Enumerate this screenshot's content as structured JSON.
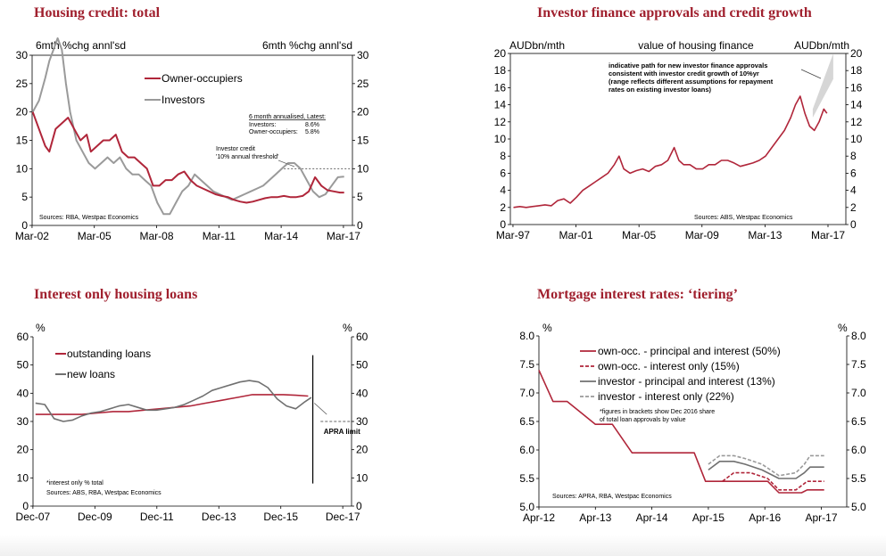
{
  "colors": {
    "title": "#a0202e",
    "red": "#b0263a",
    "grey": "#9a9a9a",
    "darkgrey": "#707070",
    "band": "#d6d6d6"
  },
  "charts": [
    {
      "id": "c1",
      "title": "Housing credit: total",
      "left_unit": "6mth %chg annl'sd",
      "right_unit": "6mth %chg annl'sd",
      "source": "Sources: RBA, Westpac Economics",
      "note": "6 month annualised, Latest:",
      "note_rows": [
        [
          "Investors:",
          "8.6%"
        ],
        [
          "Owner-occupiers:",
          "5.8%"
        ]
      ],
      "annotation": [
        "Investor credit",
        "'10% annual threshold'"
      ]
    },
    {
      "id": "c2",
      "title": "Investor finance approvals and credit growth",
      "left_unit": "AUDbn/mth",
      "center_unit": "value of housing finance",
      "right_unit": "AUDbn/mth",
      "source": "Sources: ABS, Westpac Economics",
      "annotation": [
        "indicative path for new investor finance approvals",
        "consistent with investor credit growth of 10%yr",
        "(range reflects different assumptions for repayment",
        "rates on existing investor loans)"
      ]
    },
    {
      "id": "c3",
      "title": "Interest only housing loans",
      "left_unit": "%",
      "right_unit": "%",
      "source": "Sources: ABS, RBA, Westpac Economics",
      "footnote": "*interest only % total",
      "annotation": "APRA limit"
    },
    {
      "id": "c4",
      "title": "Mortgage interest rates: ‘tiering’",
      "left_unit": "%",
      "right_unit": "%",
      "source": "Sources: APRA, RBA, Westpac Economics",
      "footnote": [
        "*figures in brackets show Dec 2016 share",
        "of total loan approvals by value"
      ]
    }
  ],
  "chart_data": [
    {
      "type": "line",
      "title": "Housing credit: total",
      "x_ticks": [
        "Mar-02",
        "Mar-05",
        "Mar-08",
        "Mar-11",
        "Mar-14",
        "Mar-17"
      ],
      "ylim": [
        0,
        30
      ],
      "y_ticks": [
        0,
        5,
        10,
        15,
        20,
        25,
        30
      ],
      "threshold": 10,
      "series": [
        {
          "name": "Owner-occupiers",
          "x": [
            2002.2,
            2002.5,
            2002.8,
            2003.0,
            2003.3,
            2003.6,
            2003.9,
            2004.2,
            2004.5,
            2004.8,
            2005.0,
            2005.3,
            2005.6,
            2005.9,
            2006.2,
            2006.5,
            2006.8,
            2007.1,
            2007.4,
            2007.7,
            2008.0,
            2008.3,
            2008.6,
            2008.9,
            2009.2,
            2009.5,
            2009.8,
            2010.1,
            2010.4,
            2010.7,
            2011.0,
            2011.3,
            2011.6,
            2011.9,
            2012.2,
            2012.5,
            2012.8,
            2013.1,
            2013.4,
            2013.7,
            2014.0,
            2014.3,
            2014.6,
            2014.9,
            2015.2,
            2015.5,
            2015.8,
            2016.1,
            2016.4,
            2016.7,
            2017.0,
            2017.2
          ],
          "y": [
            20,
            17,
            14,
            13,
            17,
            18,
            19,
            17,
            15,
            16,
            13,
            14,
            15,
            15,
            16,
            13,
            12,
            12,
            11,
            10,
            7,
            7,
            8,
            8,
            9,
            9.5,
            8,
            7,
            6.5,
            6,
            5.5,
            5.2,
            5,
            4.5,
            4.2,
            4,
            4.2,
            4.5,
            4.8,
            5,
            5,
            5.2,
            5,
            5,
            5.2,
            6,
            8.5,
            7,
            6.2,
            6,
            5.8,
            5.8
          ]
        },
        {
          "name": "Investors",
          "x": [
            2002.2,
            2002.5,
            2002.8,
            2003.0,
            2003.2,
            2003.4,
            2003.6,
            2003.8,
            2004.0,
            2004.3,
            2004.6,
            2004.9,
            2005.2,
            2005.5,
            2005.8,
            2006.1,
            2006.4,
            2006.7,
            2007.0,
            2007.3,
            2007.6,
            2007.9,
            2008.2,
            2008.5,
            2008.8,
            2009.1,
            2009.4,
            2009.7,
            2010.0,
            2010.3,
            2010.6,
            2010.9,
            2011.2,
            2011.5,
            2011.8,
            2012.1,
            2012.4,
            2012.7,
            2013.0,
            2013.3,
            2013.6,
            2013.9,
            2014.2,
            2014.5,
            2014.8,
            2015.1,
            2015.4,
            2015.7,
            2016.0,
            2016.3,
            2016.6,
            2016.9,
            2017.2
          ],
          "y": [
            20,
            22,
            26,
            29,
            31,
            33,
            31,
            25,
            20,
            15,
            13,
            11,
            10,
            11,
            12,
            11,
            12,
            10,
            9,
            9,
            8,
            7,
            4,
            2,
            2,
            4,
            6,
            7,
            9,
            8,
            7,
            6,
            5.5,
            5,
            4.5,
            5,
            5.5,
            6,
            6.5,
            7,
            8,
            9,
            10,
            11,
            11,
            10,
            8,
            6,
            5,
            5.5,
            7,
            8.5,
            8.6
          ]
        }
      ]
    },
    {
      "type": "line",
      "title": "Investor finance approvals and credit growth",
      "x_ticks": [
        "Mar-97",
        "Mar-01",
        "Mar-05",
        "Mar-09",
        "Mar-13",
        "Mar-17"
      ],
      "ylim": [
        0,
        20
      ],
      "y_ticks": [
        0,
        2,
        4,
        6,
        8,
        10,
        12,
        14,
        16,
        18,
        20
      ],
      "series": [
        {
          "name": "Investor finance approvals",
          "x": [
            1997.2,
            1997.6,
            1998.0,
            1998.4,
            1998.8,
            1999.2,
            1999.6,
            2000.0,
            2000.4,
            2000.8,
            2001.2,
            2001.6,
            2002.0,
            2002.4,
            2002.8,
            2003.2,
            2003.6,
            2003.9,
            2004.2,
            2004.6,
            2005.0,
            2005.4,
            2005.8,
            2006.2,
            2006.6,
            2007.0,
            2007.4,
            2007.7,
            2008.0,
            2008.4,
            2008.8,
            2009.2,
            2009.6,
            2010.0,
            2010.4,
            2010.8,
            2011.2,
            2011.6,
            2012.0,
            2012.4,
            2012.8,
            2013.2,
            2013.6,
            2014.0,
            2014.4,
            2014.8,
            2015.1,
            2015.4,
            2015.7,
            2016.0,
            2016.3,
            2016.6,
            2016.9,
            2017.1
          ],
          "y": [
            2,
            2.1,
            2,
            2.1,
            2.2,
            2.3,
            2.2,
            2.8,
            3,
            2.5,
            3.2,
            4,
            4.5,
            5,
            5.5,
            6,
            7,
            8,
            6.5,
            6,
            6.3,
            6.5,
            6.2,
            6.8,
            7,
            7.5,
            9,
            7.5,
            7,
            7,
            6.5,
            6.5,
            7,
            7,
            7.5,
            7.5,
            7.2,
            6.8,
            7,
            7.2,
            7.5,
            8,
            9,
            10,
            11,
            12.5,
            14,
            15,
            13,
            11.5,
            11,
            12,
            13.5,
            13
          ]
        }
      ],
      "band": {
        "from": {
          "x": 2016.2,
          "y_low": 12.5,
          "y_high": 13.5
        },
        "to": {
          "x": 2017.5,
          "y_low": 17,
          "y_high": 20
        }
      }
    },
    {
      "type": "line",
      "title": "Interest only housing loans",
      "x_ticks": [
        "Dec-07",
        "Dec-09",
        "Dec-11",
        "Dec-13",
        "Dec-15",
        "Dec-17"
      ],
      "ylim": [
        0,
        60
      ],
      "y_ticks": [
        0,
        10,
        20,
        30,
        40,
        50,
        60
      ],
      "threshold": 30,
      "threshold_label": "APRA limit",
      "series": [
        {
          "name": "outstanding loans",
          "x": [
            2008.0,
            2008.5,
            2009.0,
            2009.5,
            2010.0,
            2010.5,
            2011.0,
            2011.5,
            2012.0,
            2012.5,
            2013.0,
            2013.5,
            2014.0,
            2014.5,
            2015.0,
            2015.5,
            2016.0,
            2016.4,
            2016.8
          ],
          "y": [
            32.5,
            32.5,
            32.5,
            32.5,
            33,
            33.5,
            33.5,
            34,
            34.5,
            35,
            35.5,
            36.5,
            37.5,
            38.5,
            39.5,
            39.5,
            39.5,
            39.3,
            39
          ]
        },
        {
          "name": "new loans",
          "x": [
            2008.0,
            2008.3,
            2008.6,
            2008.9,
            2009.2,
            2009.5,
            2009.8,
            2010.1,
            2010.4,
            2010.7,
            2011.0,
            2011.3,
            2011.6,
            2011.9,
            2012.2,
            2012.5,
            2012.8,
            2013.1,
            2013.4,
            2013.7,
            2014.0,
            2014.3,
            2014.6,
            2014.9,
            2015.2,
            2015.5,
            2015.8,
            2016.1,
            2016.4,
            2016.7,
            2016.9
          ],
          "y": [
            36.5,
            36,
            31,
            30,
            30.5,
            32,
            33,
            33.5,
            34.5,
            35.5,
            36,
            35,
            34,
            34,
            34.5,
            35,
            36,
            37.5,
            39,
            41,
            42,
            43,
            44,
            44.5,
            44,
            42,
            38,
            35.5,
            34.5,
            37,
            38.5
          ]
        }
      ]
    },
    {
      "type": "line",
      "title": "Mortgage interest rates: ‘tiering’",
      "x_ticks": [
        "Apr-12",
        "Apr-13",
        "Apr-14",
        "Apr-15",
        "Apr-16",
        "Apr-17"
      ],
      "ylim": [
        5.0,
        8.0
      ],
      "y_ticks": [
        5.0,
        5.5,
        6.0,
        6.5,
        7.0,
        7.5,
        8.0
      ],
      "series": [
        {
          "name": "own-occ. - principal and interest (50%)",
          "style": "red-solid",
          "x": [
            2012.25,
            2012.5,
            2012.75,
            2013.0,
            2013.25,
            2013.55,
            2013.9,
            2014.5,
            2015.0,
            2015.2,
            2015.5,
            2015.7,
            2016.0,
            2016.3,
            2016.5,
            2016.6,
            2016.9,
            2017.0,
            2017.3
          ],
          "y": [
            7.4,
            6.85,
            6.85,
            6.65,
            6.45,
            6.45,
            5.95,
            5.95,
            5.95,
            5.45,
            5.45,
            5.45,
            5.45,
            5.45,
            5.25,
            5.25,
            5.25,
            5.3,
            5.3
          ]
        },
        {
          "name": "own-occ. - interest only (15%)",
          "style": "red-dashed",
          "x": [
            2015.5,
            2015.7,
            2016.0,
            2016.3,
            2016.5,
            2016.8,
            2017.0,
            2017.3
          ],
          "y": [
            5.45,
            5.6,
            5.6,
            5.5,
            5.3,
            5.3,
            5.45,
            5.45
          ]
        },
        {
          "name": "investor - principal and interest (13%)",
          "style": "grey-solid",
          "x": [
            2015.25,
            2015.45,
            2015.7,
            2015.9,
            2016.2,
            2016.5,
            2016.8,
            2016.95,
            2017.05,
            2017.3
          ],
          "y": [
            5.65,
            5.8,
            5.8,
            5.75,
            5.65,
            5.5,
            5.5,
            5.6,
            5.7,
            5.7
          ]
        },
        {
          "name": "investor - interest only (22%)",
          "style": "grey-dashed",
          "x": [
            2015.25,
            2015.45,
            2015.7,
            2015.9,
            2016.2,
            2016.5,
            2016.8,
            2016.95,
            2017.05,
            2017.3
          ],
          "y": [
            5.75,
            5.9,
            5.9,
            5.85,
            5.75,
            5.55,
            5.6,
            5.75,
            5.9,
            5.9
          ]
        }
      ]
    }
  ]
}
